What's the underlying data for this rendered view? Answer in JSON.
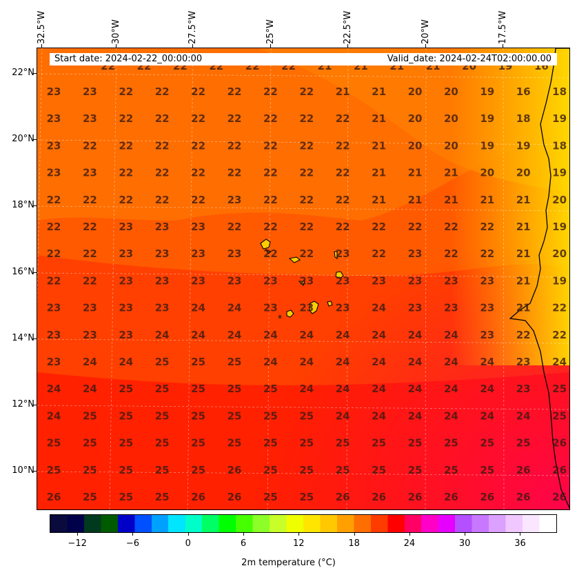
{
  "header": {
    "start_date": "Start date: 2024-02-22_00:00:00",
    "valid_date": "Valid_date: 2024-02-24T02:00:00.00"
  },
  "axes": {
    "lon_labels": [
      "32.5°W",
      "30°W",
      "27.5°W",
      "25°W",
      "22.5°W",
      "20°W",
      "17.5°W"
    ],
    "lat_labels": [
      "22°N",
      "20°N",
      "18°N",
      "16°N",
      "14°N",
      "12°N",
      "10°N"
    ]
  },
  "colorbar": {
    "title": "2m temperature (°C)",
    "ticks": [
      "−12",
      "−6",
      "0",
      "6",
      "12",
      "18",
      "24",
      "30",
      "36"
    ],
    "range": [
      -15,
      40
    ],
    "colors": [
      "#0a0a3c",
      "#00004b",
      "#003a1e",
      "#005a00",
      "#0000c8",
      "#0050ff",
      "#00a0ff",
      "#00e6ff",
      "#00ffc8",
      "#00ff64",
      "#00ff00",
      "#46ff00",
      "#8cff28",
      "#c8ff28",
      "#f0ff00",
      "#ffe600",
      "#ffc800",
      "#ffa000",
      "#ff6e00",
      "#ff3c00",
      "#ff0000",
      "#ff0064",
      "#ff00c8",
      "#e600ff",
      "#b450ff",
      "#c878ff",
      "#dca0ff",
      "#f0c8ff",
      "#fae6ff",
      "#ffffff"
    ]
  },
  "map": {
    "temperature_grid": [
      [
        23,
        23,
        22,
        22,
        22,
        22,
        22,
        22,
        21,
        21,
        20,
        20,
        19,
        16,
        18
      ],
      [
        23,
        23,
        22,
        22,
        22,
        22,
        22,
        22,
        22,
        21,
        20,
        20,
        19,
        18,
        19
      ],
      [
        23,
        22,
        22,
        22,
        22,
        22,
        22,
        22,
        22,
        21,
        20,
        20,
        19,
        19,
        18
      ],
      [
        23,
        23,
        22,
        22,
        22,
        22,
        22,
        22,
        22,
        21,
        21,
        21,
        20,
        20,
        19
      ],
      [
        22,
        22,
        22,
        22,
        22,
        23,
        22,
        22,
        22,
        21,
        21,
        21,
        21,
        21,
        20
      ],
      [
        22,
        22,
        23,
        23,
        23,
        22,
        22,
        22,
        22,
        22,
        22,
        22,
        22,
        21,
        19
      ],
      [
        22,
        22,
        23,
        23,
        23,
        23,
        22,
        22,
        23,
        22,
        23,
        22,
        22,
        21,
        20
      ],
      [
        22,
        22,
        23,
        23,
        23,
        23,
        23,
        23,
        23,
        23,
        23,
        23,
        23,
        21,
        19
      ],
      [
        23,
        23,
        23,
        23,
        24,
        24,
        23,
        23,
        23,
        24,
        23,
        23,
        23,
        21,
        22
      ],
      [
        23,
        23,
        23,
        24,
        24,
        24,
        24,
        24,
        24,
        24,
        24,
        24,
        23,
        22,
        22
      ],
      [
        23,
        24,
        24,
        25,
        25,
        25,
        24,
        24,
        24,
        24,
        24,
        24,
        24,
        23,
        24
      ],
      [
        24,
        24,
        25,
        25,
        25,
        25,
        25,
        24,
        24,
        24,
        24,
        24,
        24,
        23,
        25
      ],
      [
        24,
        25,
        25,
        25,
        25,
        25,
        25,
        25,
        24,
        24,
        24,
        24,
        24,
        24,
        25
      ],
      [
        25,
        25,
        25,
        25,
        25,
        25,
        25,
        25,
        25,
        25,
        25,
        25,
        25,
        25,
        26
      ],
      [
        25,
        25,
        25,
        25,
        25,
        26,
        25,
        25,
        25,
        25,
        25,
        25,
        25,
        26,
        26
      ],
      [
        26,
        25,
        25,
        25,
        26,
        26,
        25,
        25,
        26,
        26,
        26,
        26,
        26,
        26,
        26
      ]
    ],
    "top_partial_row": [
      "22",
      "22",
      "22",
      "22",
      "22",
      "22",
      "21",
      "21",
      "21",
      "21",
      "20",
      "19",
      "16"
    ]
  }
}
